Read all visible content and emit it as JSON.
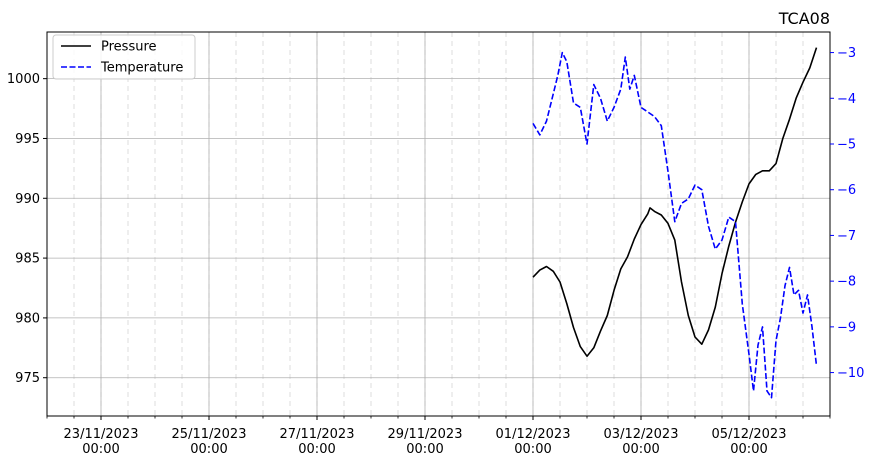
{
  "chart_data": {
    "type": "line",
    "title": "TCA08",
    "legend": {
      "placement": "top-left",
      "entries": [
        "Pressure",
        "Temperature"
      ]
    },
    "colors": {
      "pressure": "#000000",
      "temperature": "#0000ff"
    },
    "grid": "major and minor",
    "x_axis": {
      "type": "date",
      "range": [
        "2023-11-22T00:00",
        "2023-12-06T12:00"
      ],
      "ticks": [
        {
          "date": "2023-11-23T00:00",
          "label1": "23/11/2023",
          "label2": "00:00"
        },
        {
          "date": "2023-11-25T00:00",
          "label1": "25/11/2023",
          "label2": "00:00"
        },
        {
          "date": "2023-11-27T00:00",
          "label1": "27/11/2023",
          "label2": "00:00"
        },
        {
          "date": "2023-11-29T00:00",
          "label1": "29/11/2023",
          "label2": "00:00"
        },
        {
          "date": "2023-12-01T00:00",
          "label1": "01/12/2023",
          "label2": "00:00"
        },
        {
          "date": "2023-12-03T00:00",
          "label1": "03/12/2023",
          "label2": "00:00"
        },
        {
          "date": "2023-12-05T00:00",
          "label1": "05/12/2023",
          "label2": "00:00"
        }
      ]
    },
    "y_left": {
      "label": "",
      "range": [
        971.8,
        1003.9
      ],
      "ticks": [
        975,
        980,
        985,
        990,
        995,
        1000
      ]
    },
    "y_right": {
      "label": "",
      "range": [
        -10.95,
        -2.55
      ],
      "ticks": [
        -10,
        -9,
        -8,
        -7,
        -6,
        -5,
        -4,
        -3
      ]
    },
    "series": [
      {
        "name": "Pressure",
        "axis": "left",
        "style": "solid",
        "points": [
          [
            "2023-12-01T00:00",
            983.4
          ],
          [
            "2023-12-01T03:00",
            984.0
          ],
          [
            "2023-12-01T06:00",
            984.3
          ],
          [
            "2023-12-01T09:00",
            983.9
          ],
          [
            "2023-12-01T12:00",
            983.0
          ],
          [
            "2023-12-01T15:00",
            981.2
          ],
          [
            "2023-12-01T18:00",
            979.2
          ],
          [
            "2023-12-01T21:00",
            977.6
          ],
          [
            "2023-12-02T00:00",
            976.8
          ],
          [
            "2023-12-02T03:00",
            977.5
          ],
          [
            "2023-12-02T06:00",
            978.9
          ],
          [
            "2023-12-02T09:00",
            980.2
          ],
          [
            "2023-12-02T12:00",
            982.3
          ],
          [
            "2023-12-02T15:00",
            984.1
          ],
          [
            "2023-12-02T18:00",
            985.1
          ],
          [
            "2023-12-02T21:00",
            986.6
          ],
          [
            "2023-12-03T00:00",
            987.8
          ],
          [
            "2023-12-03T03:00",
            988.7
          ],
          [
            "2023-12-03T04:00",
            989.2
          ],
          [
            "2023-12-03T06:00",
            988.9
          ],
          [
            "2023-12-03T09:00",
            988.6
          ],
          [
            "2023-12-03T12:00",
            987.9
          ],
          [
            "2023-12-03T15:00",
            986.5
          ],
          [
            "2023-12-03T18:00",
            983.0
          ],
          [
            "2023-12-03T21:00",
            980.2
          ],
          [
            "2023-12-04T00:00",
            978.4
          ],
          [
            "2023-12-04T03:00",
            977.8
          ],
          [
            "2023-12-04T06:00",
            979.0
          ],
          [
            "2023-12-04T09:00",
            980.9
          ],
          [
            "2023-12-04T12:00",
            983.7
          ],
          [
            "2023-12-04T15:00",
            986.0
          ],
          [
            "2023-12-04T18:00",
            988.0
          ],
          [
            "2023-12-04T21:00",
            989.7
          ],
          [
            "2023-12-05T00:00",
            991.2
          ],
          [
            "2023-12-05T03:00",
            992.0
          ],
          [
            "2023-12-05T06:00",
            992.3
          ],
          [
            "2023-12-05T09:00",
            992.3
          ],
          [
            "2023-12-05T12:00",
            992.9
          ],
          [
            "2023-12-05T15:00",
            995.0
          ],
          [
            "2023-12-05T18:00",
            996.6
          ],
          [
            "2023-12-05T21:00",
            998.4
          ],
          [
            "2023-12-06T00:00",
            999.7
          ],
          [
            "2023-12-06T03:00",
            1000.9
          ],
          [
            "2023-12-06T06:00",
            1002.6
          ]
        ]
      },
      {
        "name": "Temperature",
        "axis": "right",
        "style": "dashed",
        "points": [
          [
            "2023-12-01T00:00",
            -4.55
          ],
          [
            "2023-12-01T03:00",
            -4.8
          ],
          [
            "2023-12-01T06:00",
            -4.5
          ],
          [
            "2023-12-01T09:00",
            -3.9
          ],
          [
            "2023-12-01T11:00",
            -3.5
          ],
          [
            "2023-12-01T13:00",
            -3.0
          ],
          [
            "2023-12-01T15:00",
            -3.2
          ],
          [
            "2023-12-01T18:00",
            -4.1
          ],
          [
            "2023-12-01T21:00",
            -4.2
          ],
          [
            "2023-12-02T00:00",
            -5.0
          ],
          [
            "2023-12-02T03:00",
            -3.7
          ],
          [
            "2023-12-02T06:00",
            -4.0
          ],
          [
            "2023-12-02T09:00",
            -4.5
          ],
          [
            "2023-12-02T12:00",
            -4.2
          ],
          [
            "2023-12-02T15:00",
            -3.8
          ],
          [
            "2023-12-02T17:00",
            -3.1
          ],
          [
            "2023-12-02T19:00",
            -3.8
          ],
          [
            "2023-12-02T21:00",
            -3.5
          ],
          [
            "2023-12-03T00:00",
            -4.2
          ],
          [
            "2023-12-03T03:00",
            -4.3
          ],
          [
            "2023-12-03T06:00",
            -4.4
          ],
          [
            "2023-12-03T09:00",
            -4.6
          ],
          [
            "2023-12-03T12:00",
            -5.6
          ],
          [
            "2023-12-03T15:00",
            -6.7
          ],
          [
            "2023-12-03T18:00",
            -6.3
          ],
          [
            "2023-12-03T21:00",
            -6.2
          ],
          [
            "2023-12-04T00:00",
            -5.9
          ],
          [
            "2023-12-04T03:00",
            -6.0
          ],
          [
            "2023-12-04T06:00",
            -6.8
          ],
          [
            "2023-12-04T09:00",
            -7.3
          ],
          [
            "2023-12-04T12:00",
            -7.1
          ],
          [
            "2023-12-04T15:00",
            -6.6
          ],
          [
            "2023-12-04T18:00",
            -6.7
          ],
          [
            "2023-12-04T21:00",
            -8.5
          ],
          [
            "2023-12-05T00:00",
            -9.6
          ],
          [
            "2023-12-05T02:00",
            -10.4
          ],
          [
            "2023-12-05T04:00",
            -9.4
          ],
          [
            "2023-12-05T06:00",
            -9.0
          ],
          [
            "2023-12-05T08:00",
            -10.4
          ],
          [
            "2023-12-05T10:00",
            -10.55
          ],
          [
            "2023-12-05T12:00",
            -9.3
          ],
          [
            "2023-12-05T14:00",
            -8.8
          ],
          [
            "2023-12-05T16:00",
            -8.1
          ],
          [
            "2023-12-05T18:00",
            -7.7
          ],
          [
            "2023-12-05T20:00",
            -8.3
          ],
          [
            "2023-12-05T22:00",
            -8.2
          ],
          [
            "2023-12-06T00:00",
            -8.7
          ],
          [
            "2023-12-06T02:00",
            -8.3
          ],
          [
            "2023-12-06T04:00",
            -9.0
          ],
          [
            "2023-12-06T06:00",
            -9.85
          ]
        ]
      }
    ]
  }
}
